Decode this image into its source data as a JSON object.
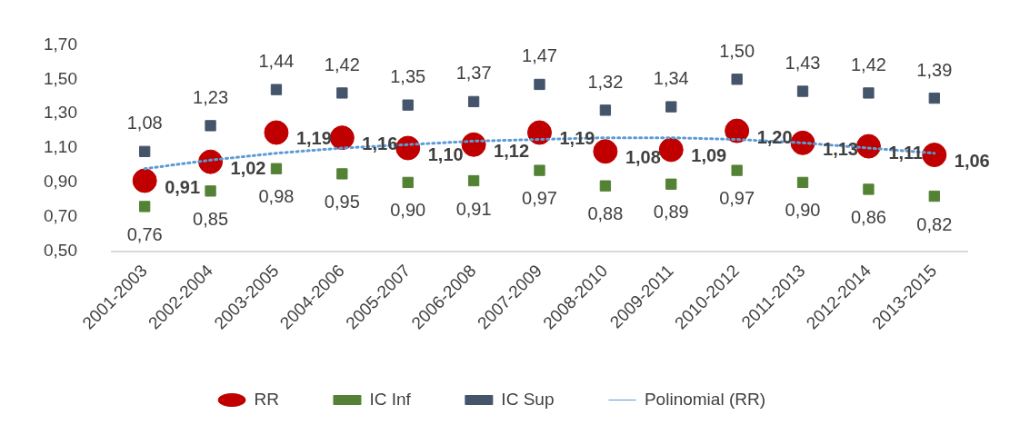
{
  "chart_data": {
    "type": "scatter",
    "categories": [
      "2001-2003",
      "2002-2004",
      "2003-2005",
      "2004-2006",
      "2005-2007",
      "2006-2008",
      "2007-2009",
      "2008-2010",
      "2009-2011",
      "2010-2012",
      "2011-2013",
      "2012-2014",
      "2013-2015"
    ],
    "ylim": [
      0.5,
      1.7
    ],
    "yticks": [
      {
        "value": 0.5,
        "label": "0,50"
      },
      {
        "value": 0.7,
        "label": "0,70"
      },
      {
        "value": 0.9,
        "label": "0,90"
      },
      {
        "value": 1.1,
        "label": "1,10"
      },
      {
        "value": 1.3,
        "label": "1,30"
      },
      {
        "value": 1.5,
        "label": "1,50"
      },
      {
        "value": 1.7,
        "label": "1,70"
      }
    ],
    "grid": false,
    "legend": "bottom",
    "series": [
      {
        "name": "RR",
        "marker": "circle",
        "color": "#c00000",
        "values": [
          0.91,
          1.02,
          1.19,
          1.16,
          1.1,
          1.12,
          1.19,
          1.08,
          1.09,
          1.2,
          1.13,
          1.11,
          1.06
        ],
        "value_labels": [
          "0,91",
          "1,02",
          "1,19",
          "1,16",
          "1,10",
          "1,12",
          "1,19",
          "1,08",
          "1,09",
          "1,20",
          "1,13",
          "1,11",
          "1,06"
        ]
      },
      {
        "name": "IC Inf",
        "marker": "square",
        "color": "#548235",
        "values": [
          0.76,
          0.85,
          0.98,
          0.95,
          0.9,
          0.91,
          0.97,
          0.88,
          0.89,
          0.97,
          0.9,
          0.86,
          0.82
        ],
        "value_labels": [
          "0,76",
          "0,85",
          "0,98",
          "0,95",
          "0,90",
          "0,91",
          "0,97",
          "0,88",
          "0,89",
          "0,97",
          "0,90",
          "0,86",
          "0,82"
        ]
      },
      {
        "name": "IC Sup",
        "marker": "square",
        "color": "#44546a",
        "values": [
          1.08,
          1.23,
          1.44,
          1.42,
          1.35,
          1.37,
          1.47,
          1.32,
          1.34,
          1.5,
          1.43,
          1.42,
          1.39
        ],
        "value_labels": [
          "1,08",
          "1,23",
          "1,44",
          "1,42",
          "1,35",
          "1,37",
          "1,47",
          "1,32",
          "1,34",
          "1,50",
          "1,43",
          "1,42",
          "1,39"
        ]
      },
      {
        "name": "Polinomial (RR)",
        "type": "line",
        "marker": "none",
        "line_style": "dotted",
        "color": "#5b9bd5",
        "values": [
          0.98,
          1.03,
          1.07,
          1.1,
          1.12,
          1.14,
          1.15,
          1.16,
          1.16,
          1.15,
          1.13,
          1.1,
          1.07
        ]
      }
    ]
  }
}
